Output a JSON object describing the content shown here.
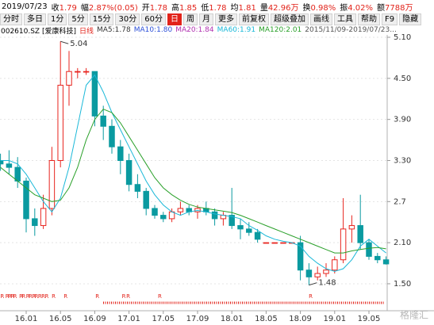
{
  "quote": {
    "date": "2019/07/23",
    "fields": [
      {
        "label": "收",
        "value": "1.79"
      },
      {
        "label": "幅",
        "value": "2.87%(0.05)"
      },
      {
        "label": "开",
        "value": "1.78"
      },
      {
        "label": "高",
        "value": "1.85"
      },
      {
        "label": "低",
        "value": "1.78"
      },
      {
        "label": "均",
        "value": "1.81"
      },
      {
        "label": "量",
        "value": "42.96万"
      },
      {
        "label": "换",
        "value": "0.98%"
      },
      {
        "label": "振",
        "value": "4.02%"
      },
      {
        "label": "额",
        "value": "7788万"
      }
    ]
  },
  "toolbar": {
    "buttons": [
      "分时",
      "多日",
      "1分",
      "5分",
      "15分",
      "30分",
      "60分",
      "日",
      "周",
      "月",
      "更多",
      "前复权",
      "超级叠加",
      "画线",
      "工具",
      "帮助",
      "F9",
      "隐藏"
    ],
    "active": 7
  },
  "chart_data": {
    "type": "candlestick",
    "code": "002610.SZ [爱康科技]",
    "period": "日线",
    "indicators": [
      {
        "text": "MA5:1.78",
        "color": "#333333"
      },
      {
        "text": "MA10:1.80",
        "color": "#2b4fd8"
      },
      {
        "text": "MA20:1.84",
        "color": "#b030b0"
      }
    ],
    "range": "2015/11/09-2019/07/23...",
    "x": [
      -3,
      -2,
      -1,
      0,
      1,
      2,
      3,
      4,
      5,
      6,
      7,
      8,
      9,
      10,
      11,
      12,
      13,
      14,
      15,
      16,
      17,
      18,
      19,
      20,
      21,
      22,
      23,
      24,
      25,
      26,
      27,
      28,
      29,
      30,
      31,
      32,
      33,
      34,
      35,
      36,
      37,
      38,
      39,
      40,
      41,
      42
    ],
    "open": [
      3.3,
      3.25,
      3.2,
      3.0,
      2.45,
      2.35,
      2.6,
      3.3,
      4.4,
      4.6,
      4.6,
      4.6,
      3.95,
      3.8,
      3.5,
      3.3,
      2.95,
      2.85,
      2.6,
      2.5,
      2.45,
      2.55,
      2.6,
      2.55,
      2.6,
      2.55,
      2.45,
      2.5,
      2.35,
      2.3,
      2.25,
      2.1,
      2.1,
      2.1,
      2.1,
      2.1,
      1.7,
      1.6,
      1.65,
      1.7,
      1.85,
      2.3,
      2.35,
      2.1,
      1.9,
      1.85
    ],
    "high": [
      3.4,
      3.45,
      3.35,
      3.05,
      2.6,
      2.8,
      3.5,
      5.04,
      4.9,
      4.65,
      4.65,
      4.6,
      4.1,
      3.9,
      3.6,
      3.4,
      3.1,
      2.9,
      2.65,
      2.55,
      2.6,
      2.7,
      2.65,
      2.65,
      2.7,
      2.6,
      2.55,
      2.9,
      2.45,
      2.4,
      2.3,
      2.1,
      2.1,
      2.1,
      2.1,
      2.2,
      1.8,
      1.75,
      1.8,
      1.9,
      2.75,
      2.5,
      2.8,
      2.15,
      1.95,
      1.9
    ],
    "low": [
      3.15,
      3.1,
      2.9,
      2.25,
      2.2,
      2.3,
      2.5,
      3.2,
      4.1,
      4.5,
      4.55,
      3.8,
      3.6,
      3.4,
      3.1,
      2.85,
      2.75,
      2.5,
      2.45,
      2.4,
      2.4,
      2.5,
      2.5,
      2.45,
      2.5,
      2.35,
      2.35,
      2.3,
      2.15,
      2.2,
      2.1,
      2.1,
      2.1,
      2.1,
      2.1,
      1.55,
      1.48,
      1.55,
      1.6,
      1.65,
      1.8,
      2.1,
      2.0,
      1.85,
      1.8,
      1.78
    ],
    "close": [
      3.25,
      3.2,
      3.0,
      2.45,
      2.35,
      2.6,
      3.3,
      4.4,
      4.6,
      4.6,
      4.6,
      3.95,
      3.8,
      3.5,
      3.3,
      2.95,
      2.85,
      2.6,
      2.5,
      2.45,
      2.55,
      2.6,
      2.55,
      2.6,
      2.55,
      2.45,
      2.5,
      2.35,
      2.3,
      2.25,
      2.15,
      2.1,
      2.1,
      2.1,
      2.1,
      1.7,
      1.6,
      1.65,
      1.7,
      1.85,
      2.3,
      2.35,
      2.1,
      1.9,
      1.85,
      1.79
    ],
    "up_color": "#e8251f",
    "down_color": "#0a9aa0",
    "series": [
      {
        "name": "MA60:1.91",
        "color": "#1ab8d8",
        "values": [
          3.3,
          3.3,
          3.25,
          3.1,
          2.9,
          2.7,
          2.55,
          2.75,
          3.2,
          3.8,
          4.4,
          4.55,
          4.3,
          4.0,
          3.75,
          3.5,
          3.25,
          3.0,
          2.8,
          2.65,
          2.55,
          2.5,
          2.55,
          2.57,
          2.55,
          2.52,
          2.5,
          2.48,
          2.45,
          2.35,
          2.28,
          2.2,
          2.15,
          2.12,
          2.1,
          2.05,
          1.9,
          1.8,
          1.72,
          1.68,
          1.72,
          1.85,
          2.05,
          2.15,
          2.05,
          1.95
        ]
      },
      {
        "name": "MA120:2.01",
        "color": "#2aa02a",
        "values": [
          3.2,
          3.1,
          3.0,
          2.9,
          2.8,
          2.75,
          2.7,
          2.72,
          2.9,
          3.2,
          3.6,
          3.9,
          4.05,
          4.0,
          3.85,
          3.65,
          3.45,
          3.25,
          3.05,
          2.9,
          2.8,
          2.72,
          2.66,
          2.62,
          2.6,
          2.58,
          2.56,
          2.54,
          2.5,
          2.45,
          2.4,
          2.35,
          2.3,
          2.25,
          2.2,
          2.15,
          2.1,
          2.05,
          2.0,
          1.95,
          1.95,
          1.98,
          2.0,
          2.02,
          2.03,
          2.01
        ]
      }
    ],
    "xlim": [
      -3.056,
      42.13
    ],
    "xticks": [
      {
        "value": 0,
        "label": "16.01"
      },
      {
        "value": 4,
        "label": "16.05"
      },
      {
        "value": 8,
        "label": "16.09"
      },
      {
        "value": 12,
        "label": "17.01"
      },
      {
        "value": 16,
        "label": "17.05"
      },
      {
        "value": 20,
        "label": "17.09"
      },
      {
        "value": 24,
        "label": "18.01"
      },
      {
        "value": 28,
        "label": "18.05"
      },
      {
        "value": 32,
        "label": "18.09"
      },
      {
        "value": 36,
        "label": "19.01"
      },
      {
        "value": 40,
        "label": "19.05"
      }
    ],
    "ylim": [
      1.106,
      5.135
    ],
    "yticks": [
      {
        "value": 5.1,
        "label": "5.10"
      },
      {
        "value": 4.5,
        "label": "4.50"
      },
      {
        "value": 3.9,
        "label": "3.90"
      },
      {
        "value": 3.3,
        "label": "3.30"
      },
      2.7,
      {
        "value": 2.1,
        "label": "2.10"
      },
      {
        "value": 1.5,
        "label": "1.50"
      }
    ],
    "grid": true,
    "annotations": [
      {
        "label": "5.04",
        "x": 4,
        "value": 5.04
      },
      {
        "label": "1.48",
        "x": 33,
        "value": 1.48
      }
    ],
    "r_markers": {
      "label": "R",
      "x": [
        -2.8,
        -2.2,
        -1.9,
        -1.6,
        -1.3,
        -0.6,
        -0.3,
        0.2,
        0.5,
        0.9,
        1.2,
        1.6,
        2.0,
        2.4,
        3.2,
        4.6,
        8.3,
        11.4,
        11.9,
        15.6,
        33.2
      ]
    }
  },
  "watermark": "格隆汇"
}
